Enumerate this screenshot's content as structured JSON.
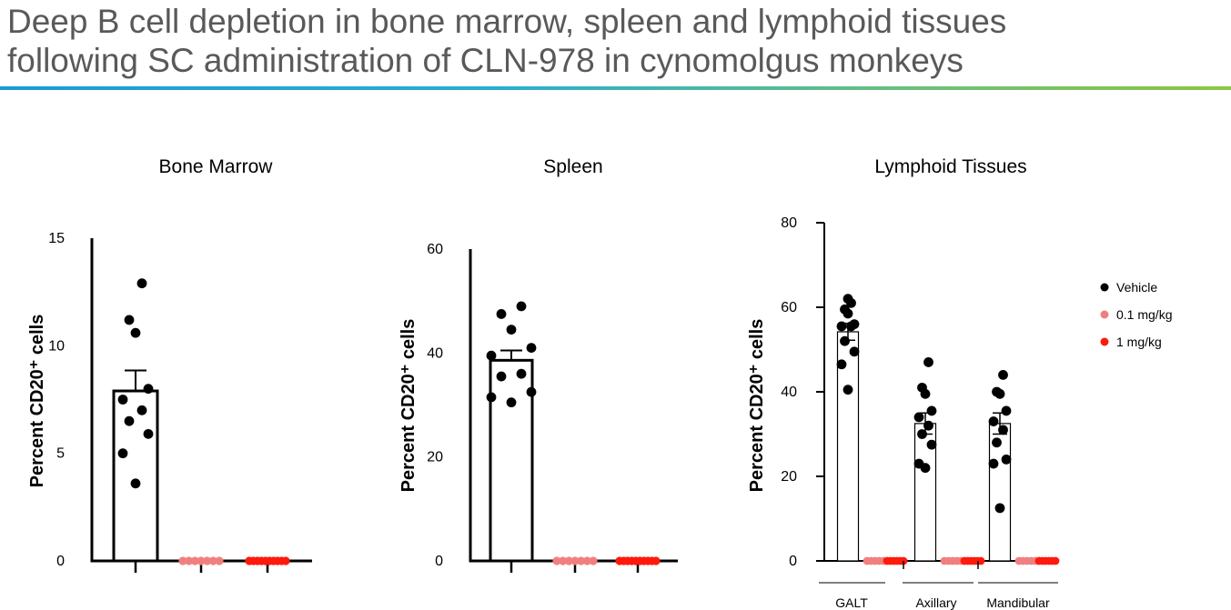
{
  "title_line1": "Deep B cell depletion in bone marrow, spleen and lymphoid tissues",
  "title_line2": "following SC administration of CLN-978 in cynomolgus monkeys",
  "colors": {
    "vehicle": "#000000",
    "low_dose": "#f08080",
    "high_dose": "#ff1a0d",
    "title_text": "#595959",
    "rule_start": "#1a9ad6",
    "rule_end": "#8cc63f"
  },
  "legend": [
    {
      "label": "Vehicle",
      "color": "#000000"
    },
    {
      "label": "0.1 mg/kg",
      "color": "#f08080"
    },
    {
      "label": "1 mg/kg",
      "color": "#ff1a0d"
    }
  ],
  "chart_data": [
    {
      "type": "bar",
      "title": "Bone Marrow",
      "ylabel": "Percent CD20⁺ cells",
      "ylim": [
        0,
        15
      ],
      "yticks": [
        0,
        5,
        10,
        15
      ],
      "groups": [
        {
          "name": "Vehicle",
          "mean": 7.9,
          "sem": 0.95,
          "points": [
            3.6,
            5.0,
            5.9,
            6.5,
            7.0,
            7.5,
            8.0,
            10.6,
            11.2,
            12.9
          ]
        },
        {
          "name": "0.1 mg/kg",
          "mean": 0.05,
          "sem": 0,
          "points": [
            0,
            0,
            0,
            0,
            0,
            0,
            0
          ]
        },
        {
          "name": "1 mg/kg",
          "mean": 0.05,
          "sem": 0,
          "points": [
            0,
            0,
            0,
            0,
            0,
            0,
            0,
            0,
            0,
            0
          ]
        }
      ]
    },
    {
      "type": "bar",
      "title": "Spleen",
      "ylabel": "Percent CD20⁺ cells",
      "ylim": [
        0,
        60
      ],
      "yticks": [
        0,
        20,
        40,
        60
      ],
      "groups": [
        {
          "name": "Vehicle",
          "mean": 38.6,
          "sem": 1.9,
          "points": [
            30.5,
            31.5,
            32.5,
            35.5,
            36.0,
            39.5,
            41.0,
            44.5,
            47.5,
            49.0
          ]
        },
        {
          "name": "0.1 mg/kg",
          "mean": 0.3,
          "sem": 0,
          "points": [
            0,
            0,
            0,
            0,
            0,
            0,
            0
          ]
        },
        {
          "name": "1 mg/kg",
          "mean": 0.3,
          "sem": 0,
          "points": [
            0,
            0,
            0,
            0,
            0,
            0,
            0,
            0,
            0,
            0
          ]
        }
      ]
    },
    {
      "type": "bar",
      "title": "Lymphoid Tissues",
      "ylabel": "Percent CD20⁺ cells",
      "ylim": [
        0,
        80
      ],
      "yticks": [
        0,
        20,
        40,
        60,
        80
      ],
      "tissues": [
        {
          "name": "GALT",
          "groups": [
            {
              "name": "Vehicle",
              "mean": 54.2,
              "sem": 2.0,
              "points": [
                40.5,
                46.5,
                49.5,
                52.0,
                55.5,
                55.5,
                56.0,
                58.5,
                59.5,
                61.0,
                62.0
              ]
            },
            {
              "name": "0.1 mg/kg",
              "mean": 0,
              "sem": 0,
              "points": [
                0,
                0,
                0,
                0,
                0
              ]
            },
            {
              "name": "1 mg/kg",
              "mean": 0,
              "sem": 0,
              "points": [
                0,
                0,
                0,
                0,
                0,
                0
              ]
            }
          ]
        },
        {
          "name": "Axillary",
          "groups": [
            {
              "name": "Vehicle",
              "mean": 32.5,
              "sem": 2.5,
              "points": [
                22.0,
                23.0,
                27.5,
                30.0,
                32.0,
                34.0,
                35.5,
                39.5,
                41.0,
                47.0
              ]
            },
            {
              "name": "0.1 mg/kg",
              "mean": 0,
              "sem": 0,
              "points": [
                0,
                0,
                0,
                0,
                0
              ]
            },
            {
              "name": "1 mg/kg",
              "mean": 0,
              "sem": 0,
              "points": [
                0,
                0,
                0,
                0,
                0,
                0
              ]
            }
          ]
        },
        {
          "name": "Mandibular",
          "groups": [
            {
              "name": "Vehicle",
              "mean": 32.5,
              "sem": 2.5,
              "points": [
                12.5,
                23.0,
                24.0,
                28.0,
                31.0,
                33.0,
                35.5,
                39.5,
                40.0,
                44.0
              ]
            },
            {
              "name": "0.1 mg/kg",
              "mean": 0,
              "sem": 0,
              "points": [
                0,
                0,
                0,
                0,
                0
              ]
            },
            {
              "name": "1 mg/kg",
              "mean": 0,
              "sem": 0,
              "points": [
                0,
                0,
                0,
                0,
                0,
                0
              ]
            }
          ]
        }
      ]
    }
  ]
}
